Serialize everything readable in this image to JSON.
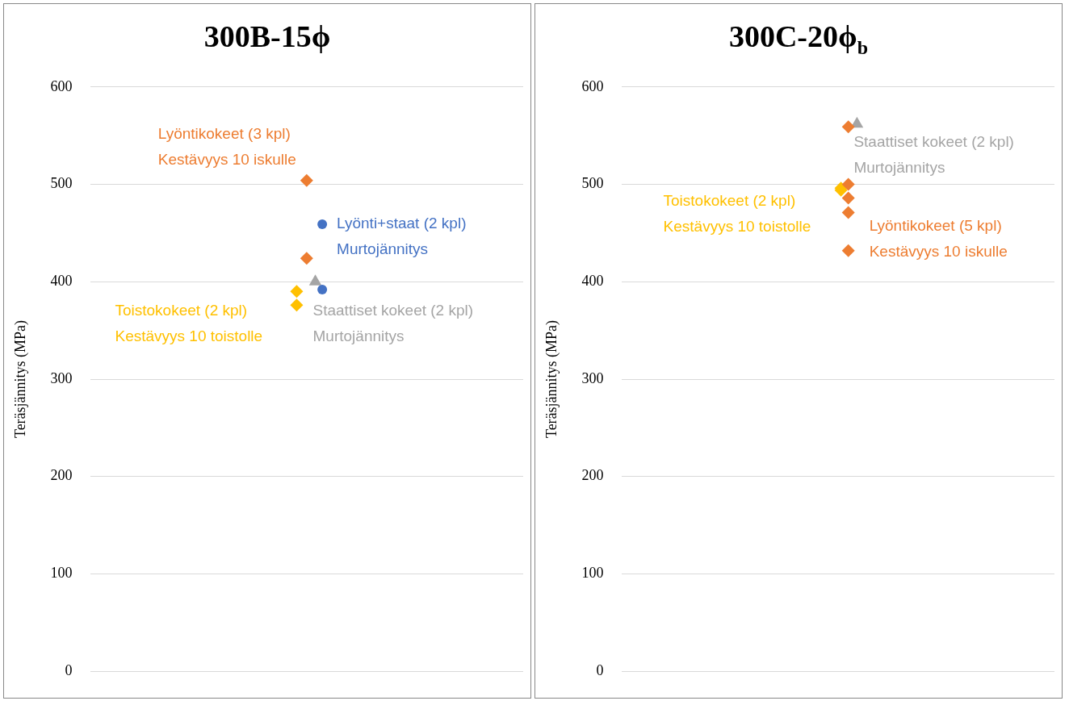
{
  "chart_data": [
    {
      "type": "scatter",
      "title": "300B-15ϕ",
      "ylabel": "Teräsjännitys (MPa)",
      "categories": [
        null
      ],
      "ylim": [
        0,
        600
      ],
      "yticks": [
        0,
        100,
        200,
        300,
        400,
        500,
        600
      ],
      "grid": "y",
      "series": [
        {
          "name": "Lyöntikokeet (3 kpl)\nKestävyys 10 iskulle",
          "color": "#ed7d31",
          "marker": "diamond",
          "x": [
            null,
            null
          ],
          "values": [
            504,
            424
          ]
        },
        {
          "name": "Lyönti+staat (2 kpl)\nMurtojännitys",
          "color": "#4472c4",
          "marker": "circle",
          "x": [
            null,
            null
          ],
          "values": [
            459,
            392
          ]
        },
        {
          "name": "Staattiset kokeet (2 kpl)\nMurtojännitys",
          "color": "#a5a5a5",
          "marker": "triangle",
          "values": [
            400
          ]
        },
        {
          "name": "Toistokokeet (2 kpl)\nKestävyys 10 toistolle",
          "color": "#ffc000",
          "marker": "diamond",
          "x": [
            null,
            null
          ],
          "values": [
            390,
            376
          ]
        }
      ]
    },
    {
      "type": "scatter",
      "title": "300C-20ϕ$_{b}$",
      "ylabel": "Teräsjännitys (MPa)",
      "categories": [
        null
      ],
      "ylim": [
        0,
        600
      ],
      "yticks": [
        0,
        100,
        200,
        300,
        400,
        500,
        600
      ],
      "grid": "y",
      "series": [
        {
          "name": "Lyöntikokeet (5 kpl)\nKestävyys 10 iskulle",
          "color": "#ed7d31",
          "marker": "diamond",
          "x": [
            null,
            null,
            null,
            null,
            null
          ],
          "values": [
            559,
            500,
            486,
            471,
            432
          ]
        },
        {
          "name": "Staattiset kokeet (2 kpl)\nMurtojännitys",
          "color": "#a5a5a5",
          "marker": "triangle",
          "values": [
            562
          ]
        },
        {
          "name": "Toistokokeet (2 kpl)\nKestävyys 10 toistolle",
          "color": "#ffc000",
          "marker": "diamond",
          "x": [
            null,
            null
          ],
          "values": [
            496,
            494
          ]
        }
      ]
    }
  ]
}
